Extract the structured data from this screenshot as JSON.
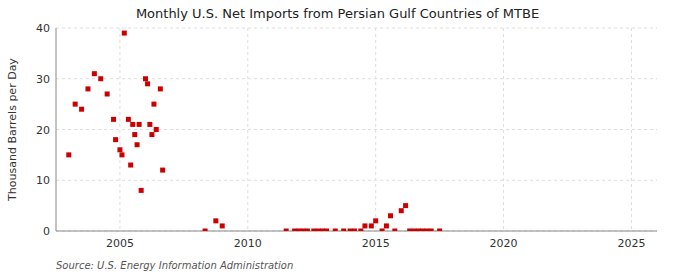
{
  "chart_data": {
    "type": "scatter",
    "title": "Monthly U.S. Net Imports from Persian Gulf Countries of MTBE",
    "ylabel": "Thousand Barrels per Day",
    "annotations": [
      "Source: U.S. Energy Information Administration"
    ],
    "color": "#cc0000",
    "marker": "square",
    "grid": true,
    "xlim": [
      2002.5,
      2026
    ],
    "ylim": [
      0,
      40
    ],
    "xticks": [
      2005,
      2010,
      2015,
      2020,
      2025
    ],
    "yticks": [
      0,
      10,
      20,
      30,
      40
    ],
    "x": [
      2003.0,
      2003.25,
      2003.5,
      2003.75,
      2004.0,
      2004.25,
      2004.5,
      2004.75,
      2004.83,
      2005.0,
      2005.08,
      2005.17,
      2005.33,
      2005.42,
      2005.5,
      2005.58,
      2005.67,
      2005.75,
      2005.83,
      2006.0,
      2006.08,
      2006.17,
      2006.25,
      2006.33,
      2006.42,
      2006.58,
      2006.67,
      2008.33,
      2008.75,
      2009.0,
      2011.5,
      2011.83,
      2012.0,
      2012.17,
      2012.33,
      2012.58,
      2012.75,
      2012.92,
      2013.08,
      2013.42,
      2013.75,
      2014.0,
      2014.17,
      2014.42,
      2014.58,
      2014.83,
      2015.0,
      2015.25,
      2015.42,
      2015.58,
      2015.75,
      2016.0,
      2016.17,
      2016.33,
      2016.5,
      2016.67,
      2016.83,
      2017.0,
      2017.17,
      2017.5
    ],
    "values": [
      15,
      25,
      24,
      28,
      31,
      30,
      27,
      22,
      18,
      16,
      15,
      39,
      22,
      13,
      21,
      19,
      17,
      21,
      8,
      30,
      29,
      21,
      19,
      25,
      20,
      28,
      12,
      0,
      2,
      1,
      0,
      0,
      0,
      0,
      0,
      0,
      0,
      0,
      0,
      0,
      0,
      0,
      0,
      0,
      1,
      1,
      2,
      0,
      1,
      3,
      0,
      4,
      5,
      0,
      0,
      0,
      0,
      0,
      0,
      0
    ]
  }
}
